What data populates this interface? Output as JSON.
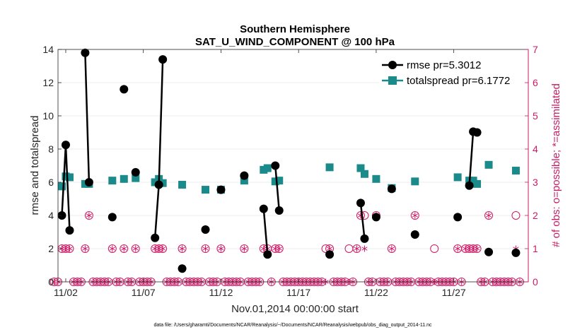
{
  "chart_data": {
    "type": "line",
    "title": "Southern Hemisphere",
    "subtitle": "SAT_U_WIND_COMPONENT @ 100 hPa",
    "xlabel": "Nov.01,2014 00:00:00 start",
    "ylabel": "rmse and totalspread",
    "y2label": "# of obs: o=possible; *=assimilated",
    "xlim": [
      0.5,
      30.8
    ],
    "ylim": [
      0,
      14
    ],
    "y2lim": [
      0,
      7
    ],
    "x_ticks": [
      1,
      6,
      11,
      16,
      21,
      26
    ],
    "x_tick_labels": [
      "11/02",
      "11/07",
      "11/12",
      "11/17",
      "11/22",
      "11/27"
    ],
    "y_ticks": [
      0,
      2,
      4,
      6,
      8,
      10,
      12,
      14
    ],
    "y2_ticks": [
      0,
      1,
      2,
      3,
      4,
      5,
      6,
      7
    ],
    "grid": "y",
    "legend_position": "top-right",
    "colors": {
      "rmse": "#000000",
      "spread": "#1a8a8a",
      "obs": "#cc1a66"
    },
    "series": [
      {
        "name": "rmse pr=5.3012",
        "segments": [
          [
            [
              0.75,
              4.0
            ],
            [
              1.0,
              8.25
            ],
            [
              1.25,
              3.1
            ]
          ],
          [
            [
              2.25,
              13.8
            ],
            [
              2.5,
              6.0
            ]
          ],
          [
            [
              4.0,
              3.9
            ]
          ],
          [
            [
              4.75,
              11.6
            ]
          ],
          [
            [
              5.5,
              6.6
            ]
          ],
          [
            [
              6.75,
              2.65
            ],
            [
              7.0,
              5.85
            ],
            [
              7.25,
              13.4
            ]
          ],
          [
            [
              8.5,
              0.8
            ]
          ],
          [
            [
              10.0,
              3.15
            ]
          ],
          [
            [
              11.0,
              5.55
            ]
          ],
          [
            [
              12.5,
              6.4
            ]
          ],
          [
            [
              13.75,
              4.4
            ],
            [
              14.0,
              1.65
            ]
          ],
          [
            [
              14.5,
              7.0
            ],
            [
              14.75,
              4.3
            ]
          ],
          [
            [
              18.0,
              1.65
            ]
          ],
          [
            [
              20.0,
              4.75
            ],
            [
              20.25,
              2.6
            ]
          ],
          [
            [
              21.0,
              3.9
            ]
          ],
          [
            [
              22.0,
              5.6
            ]
          ],
          [
            [
              23.5,
              2.85
            ]
          ],
          [
            [
              26.25,
              3.9
            ]
          ],
          [
            [
              27.0,
              5.8
            ],
            [
              27.25,
              9.05
            ]
          ],
          [
            [
              27.5,
              9.0
            ]
          ],
          [
            [
              28.25,
              1.8
            ]
          ],
          [
            [
              30.0,
              1.75
            ]
          ]
        ]
      },
      {
        "name": "totalspread pr=6.1772",
        "segments": [
          [
            [
              0.75,
              5.75
            ],
            [
              1.0,
              6.35
            ],
            [
              1.25,
              6.3
            ]
          ],
          [
            [
              2.25,
              5.9
            ],
            [
              2.5,
              5.9
            ]
          ],
          [
            [
              4.0,
              6.1
            ]
          ],
          [
            [
              4.75,
              6.2
            ]
          ],
          [
            [
              5.5,
              6.25
            ]
          ],
          [
            [
              6.75,
              6.0
            ],
            [
              7.0,
              6.2
            ],
            [
              7.25,
              5.95
            ]
          ],
          [
            [
              8.5,
              5.85
            ]
          ],
          [
            [
              10.0,
              5.55
            ]
          ],
          [
            [
              11.0,
              5.55
            ]
          ],
          [
            [
              12.5,
              6.1
            ]
          ],
          [
            [
              13.75,
              6.75
            ],
            [
              14.0,
              6.85
            ]
          ],
          [
            [
              14.5,
              6.05
            ],
            [
              14.75,
              6.1
            ]
          ],
          [
            [
              18.0,
              6.9
            ]
          ],
          [
            [
              20.0,
              6.85
            ],
            [
              20.25,
              6.5
            ]
          ],
          [
            [
              21.0,
              6.2
            ]
          ],
          [
            [
              22.0,
              5.65
            ]
          ],
          [
            [
              23.5,
              6.05
            ]
          ],
          [
            [
              26.25,
              6.3
            ]
          ],
          [
            [
              27.0,
              6.1
            ],
            [
              27.25,
              6.1
            ]
          ],
          [
            [
              27.5,
              5.9
            ]
          ],
          [
            [
              28.25,
              7.05
            ]
          ],
          [
            [
              30.0,
              6.7
            ]
          ]
        ]
      }
    ],
    "obs_possible": [
      {
        "x": 0.0,
        "n": 1
      },
      {
        "x": 0.25,
        "n": 0
      },
      {
        "x": 0.5,
        "n": 0
      },
      {
        "x": 0.75,
        "n": 1
      },
      {
        "x": 1.0,
        "n": 1
      },
      {
        "x": 1.25,
        "n": 1
      },
      {
        "x": 1.5,
        "n": 0
      },
      {
        "x": 1.75,
        "n": 0
      },
      {
        "x": 2.0,
        "n": 0
      },
      {
        "x": 2.25,
        "n": 1
      },
      {
        "x": 2.5,
        "n": 2
      },
      {
        "x": 2.75,
        "n": 0
      },
      {
        "x": 3.0,
        "n": 0
      },
      {
        "x": 3.25,
        "n": 0
      },
      {
        "x": 3.5,
        "n": 0
      },
      {
        "x": 3.75,
        "n": 0
      },
      {
        "x": 4.0,
        "n": 1
      },
      {
        "x": 4.25,
        "n": 0
      },
      {
        "x": 4.5,
        "n": 0
      },
      {
        "x": 4.75,
        "n": 1
      },
      {
        "x": 5.0,
        "n": 0
      },
      {
        "x": 5.25,
        "n": 0
      },
      {
        "x": 5.5,
        "n": 1
      },
      {
        "x": 5.75,
        "n": 0
      },
      {
        "x": 6.0,
        "n": 0
      },
      {
        "x": 6.25,
        "n": 0
      },
      {
        "x": 6.5,
        "n": 0
      },
      {
        "x": 6.75,
        "n": 1
      },
      {
        "x": 7.0,
        "n": 1
      },
      {
        "x": 7.25,
        "n": 1
      },
      {
        "x": 7.5,
        "n": 0
      },
      {
        "x": 7.75,
        "n": 0
      },
      {
        "x": 8.0,
        "n": 0
      },
      {
        "x": 8.25,
        "n": 0
      },
      {
        "x": 8.5,
        "n": 1
      },
      {
        "x": 8.75,
        "n": 0
      },
      {
        "x": 9.0,
        "n": 0
      },
      {
        "x": 9.25,
        "n": 0
      },
      {
        "x": 9.5,
        "n": 0
      },
      {
        "x": 9.75,
        "n": 0
      },
      {
        "x": 10.0,
        "n": 1
      },
      {
        "x": 10.25,
        "n": 0
      },
      {
        "x": 10.5,
        "n": 0
      },
      {
        "x": 10.75,
        "n": 0
      },
      {
        "x": 11.0,
        "n": 1
      },
      {
        "x": 11.25,
        "n": 0
      },
      {
        "x": 11.5,
        "n": 0
      },
      {
        "x": 11.75,
        "n": 0
      },
      {
        "x": 12.0,
        "n": 0
      },
      {
        "x": 12.25,
        "n": 0
      },
      {
        "x": 12.5,
        "n": 1
      },
      {
        "x": 12.75,
        "n": 0
      },
      {
        "x": 13.0,
        "n": 0
      },
      {
        "x": 13.25,
        "n": 0
      },
      {
        "x": 13.5,
        "n": 0
      },
      {
        "x": 13.75,
        "n": 1
      },
      {
        "x": 14.0,
        "n": 1
      },
      {
        "x": 14.25,
        "n": 0
      },
      {
        "x": 14.5,
        "n": 1
      },
      {
        "x": 14.75,
        "n": 1
      },
      {
        "x": 15.0,
        "n": 0
      },
      {
        "x": 15.25,
        "n": 0
      },
      {
        "x": 15.5,
        "n": 0
      },
      {
        "x": 15.75,
        "n": 0
      },
      {
        "x": 16.0,
        "n": 0
      },
      {
        "x": 16.25,
        "n": 0
      },
      {
        "x": 16.5,
        "n": 0
      },
      {
        "x": 16.75,
        "n": 0
      },
      {
        "x": 17.0,
        "n": 0
      },
      {
        "x": 17.25,
        "n": 0
      },
      {
        "x": 17.5,
        "n": 0
      },
      {
        "x": 17.75,
        "n": 1
      },
      {
        "x": 18.0,
        "n": 1
      },
      {
        "x": 18.25,
        "n": 0
      },
      {
        "x": 18.5,
        "n": 0
      },
      {
        "x": 18.75,
        "n": 0
      },
      {
        "x": 19.0,
        "n": 0
      },
      {
        "x": 19.25,
        "n": 1
      },
      {
        "x": 19.5,
        "n": 0
      },
      {
        "x": 19.75,
        "n": 1
      },
      {
        "x": 20.0,
        "n": 2
      },
      {
        "x": 20.25,
        "n": 2
      },
      {
        "x": 20.5,
        "n": 0
      },
      {
        "x": 20.75,
        "n": 0
      },
      {
        "x": 21.0,
        "n": 2
      },
      {
        "x": 21.25,
        "n": 0
      },
      {
        "x": 21.5,
        "n": 0
      },
      {
        "x": 21.75,
        "n": 0
      },
      {
        "x": 22.0,
        "n": 1
      },
      {
        "x": 22.25,
        "n": 0
      },
      {
        "x": 22.5,
        "n": 0
      },
      {
        "x": 22.75,
        "n": 0
      },
      {
        "x": 23.0,
        "n": 0
      },
      {
        "x": 23.25,
        "n": 0
      },
      {
        "x": 23.5,
        "n": 2
      },
      {
        "x": 23.75,
        "n": 0
      },
      {
        "x": 24.0,
        "n": 0
      },
      {
        "x": 24.25,
        "n": 0
      },
      {
        "x": 24.5,
        "n": 0
      },
      {
        "x": 24.75,
        "n": 1
      },
      {
        "x": 25.0,
        "n": 0
      },
      {
        "x": 25.25,
        "n": 0
      },
      {
        "x": 25.5,
        "n": 0
      },
      {
        "x": 25.75,
        "n": 0
      },
      {
        "x": 26.0,
        "n": 0
      },
      {
        "x": 26.25,
        "n": 1
      },
      {
        "x": 26.5,
        "n": 0
      },
      {
        "x": 26.75,
        "n": 1
      },
      {
        "x": 27.0,
        "n": 1
      },
      {
        "x": 27.25,
        "n": 1
      },
      {
        "x": 27.5,
        "n": 1
      },
      {
        "x": 27.75,
        "n": 0
      },
      {
        "x": 28.0,
        "n": 0
      },
      {
        "x": 28.25,
        "n": 2
      },
      {
        "x": 28.5,
        "n": 0
      },
      {
        "x": 28.75,
        "n": 0
      },
      {
        "x": 29.0,
        "n": 0
      },
      {
        "x": 29.25,
        "n": 0
      },
      {
        "x": 29.5,
        "n": 0
      },
      {
        "x": 29.75,
        "n": 0
      },
      {
        "x": 30.0,
        "n": 2
      },
      {
        "x": 30.25,
        "n": 0
      }
    ],
    "obs_assimilated": [
      {
        "x": 0.0,
        "n": 0
      },
      {
        "x": 0.25,
        "n": 0
      },
      {
        "x": 0.5,
        "n": 0
      },
      {
        "x": 0.75,
        "n": 1
      },
      {
        "x": 1.0,
        "n": 1
      },
      {
        "x": 1.25,
        "n": 1
      },
      {
        "x": 1.5,
        "n": 0
      },
      {
        "x": 1.75,
        "n": 0
      },
      {
        "x": 2.0,
        "n": 0
      },
      {
        "x": 2.25,
        "n": 1
      },
      {
        "x": 2.5,
        "n": 2
      },
      {
        "x": 2.75,
        "n": 0
      },
      {
        "x": 3.0,
        "n": 0
      },
      {
        "x": 3.25,
        "n": 0
      },
      {
        "x": 3.5,
        "n": 0
      },
      {
        "x": 3.75,
        "n": 0
      },
      {
        "x": 4.0,
        "n": 1
      },
      {
        "x": 4.25,
        "n": 0
      },
      {
        "x": 4.5,
        "n": 0
      },
      {
        "x": 4.75,
        "n": 1
      },
      {
        "x": 5.0,
        "n": 0
      },
      {
        "x": 5.25,
        "n": 0
      },
      {
        "x": 5.5,
        "n": 1
      },
      {
        "x": 5.75,
        "n": 0
      },
      {
        "x": 6.0,
        "n": 0
      },
      {
        "x": 6.25,
        "n": 0
      },
      {
        "x": 6.5,
        "n": 0
      },
      {
        "x": 6.75,
        "n": 1
      },
      {
        "x": 7.0,
        "n": 1
      },
      {
        "x": 7.25,
        "n": 1
      },
      {
        "x": 7.5,
        "n": 0
      },
      {
        "x": 7.75,
        "n": 0
      },
      {
        "x": 8.0,
        "n": 0
      },
      {
        "x": 8.25,
        "n": 0
      },
      {
        "x": 8.5,
        "n": 1
      },
      {
        "x": 8.75,
        "n": 0
      },
      {
        "x": 9.0,
        "n": 0
      },
      {
        "x": 9.25,
        "n": 0
      },
      {
        "x": 9.5,
        "n": 0
      },
      {
        "x": 9.75,
        "n": 0
      },
      {
        "x": 10.0,
        "n": 1
      },
      {
        "x": 10.25,
        "n": 0
      },
      {
        "x": 10.5,
        "n": 0
      },
      {
        "x": 10.75,
        "n": 0
      },
      {
        "x": 11.0,
        "n": 1
      },
      {
        "x": 11.25,
        "n": 0
      },
      {
        "x": 11.5,
        "n": 0
      },
      {
        "x": 11.75,
        "n": 0
      },
      {
        "x": 12.0,
        "n": 0
      },
      {
        "x": 12.25,
        "n": 0
      },
      {
        "x": 12.5,
        "n": 1
      },
      {
        "x": 12.75,
        "n": 0
      },
      {
        "x": 13.0,
        "n": 0
      },
      {
        "x": 13.25,
        "n": 0
      },
      {
        "x": 13.5,
        "n": 0
      },
      {
        "x": 13.75,
        "n": 1
      },
      {
        "x": 14.0,
        "n": 1
      },
      {
        "x": 14.25,
        "n": 0
      },
      {
        "x": 14.5,
        "n": 1
      },
      {
        "x": 14.75,
        "n": 1
      },
      {
        "x": 15.0,
        "n": 0
      },
      {
        "x": 15.25,
        "n": 0
      },
      {
        "x": 15.5,
        "n": 0
      },
      {
        "x": 15.75,
        "n": 0
      },
      {
        "x": 16.0,
        "n": 0
      },
      {
        "x": 16.25,
        "n": 0
      },
      {
        "x": 16.5,
        "n": 0
      },
      {
        "x": 16.75,
        "n": 0
      },
      {
        "x": 17.0,
        "n": 0
      },
      {
        "x": 17.25,
        "n": 0
      },
      {
        "x": 17.5,
        "n": 0
      },
      {
        "x": 17.75,
        "n": 0
      },
      {
        "x": 18.0,
        "n": 1
      },
      {
        "x": 18.25,
        "n": 0
      },
      {
        "x": 18.5,
        "n": 0
      },
      {
        "x": 18.75,
        "n": 0
      },
      {
        "x": 19.0,
        "n": 0
      },
      {
        "x": 19.25,
        "n": 0
      },
      {
        "x": 19.5,
        "n": 0
      },
      {
        "x": 19.75,
        "n": 1
      },
      {
        "x": 20.0,
        "n": 2
      },
      {
        "x": 20.25,
        "n": 1
      },
      {
        "x": 20.5,
        "n": 0
      },
      {
        "x": 20.75,
        "n": 0
      },
      {
        "x": 21.0,
        "n": 2
      },
      {
        "x": 21.25,
        "n": 0
      },
      {
        "x": 21.5,
        "n": 0
      },
      {
        "x": 21.75,
        "n": 0
      },
      {
        "x": 22.0,
        "n": 1
      },
      {
        "x": 22.25,
        "n": 0
      },
      {
        "x": 22.5,
        "n": 0
      },
      {
        "x": 22.75,
        "n": 0
      },
      {
        "x": 23.0,
        "n": 0
      },
      {
        "x": 23.25,
        "n": 0
      },
      {
        "x": 23.5,
        "n": 2
      },
      {
        "x": 23.75,
        "n": 0
      },
      {
        "x": 24.0,
        "n": 0
      },
      {
        "x": 24.25,
        "n": 0
      },
      {
        "x": 24.5,
        "n": 0
      },
      {
        "x": 24.75,
        "n": 0
      },
      {
        "x": 25.0,
        "n": 0
      },
      {
        "x": 25.25,
        "n": 0
      },
      {
        "x": 25.5,
        "n": 0
      },
      {
        "x": 25.75,
        "n": 0
      },
      {
        "x": 26.0,
        "n": 0
      },
      {
        "x": 26.25,
        "n": 1
      },
      {
        "x": 26.5,
        "n": 0
      },
      {
        "x": 26.75,
        "n": 1
      },
      {
        "x": 27.0,
        "n": 1
      },
      {
        "x": 27.25,
        "n": 1
      },
      {
        "x": 27.5,
        "n": 1
      },
      {
        "x": 27.75,
        "n": 0
      },
      {
        "x": 28.0,
        "n": 0
      },
      {
        "x": 28.25,
        "n": 2
      },
      {
        "x": 28.5,
        "n": 0
      },
      {
        "x": 28.75,
        "n": 0
      },
      {
        "x": 29.0,
        "n": 0
      },
      {
        "x": 29.25,
        "n": 0
      },
      {
        "x": 29.5,
        "n": 0
      },
      {
        "x": 29.75,
        "n": 0
      },
      {
        "x": 30.0,
        "n": 1
      },
      {
        "x": 30.25,
        "n": 0
      }
    ],
    "footnote": "data file: /Users/gharamti/Documents/NCAR/Reanalysis/~/Documents/NCAR/Reanalysis/webpub/obs_diag_output_2014-11.nc"
  }
}
